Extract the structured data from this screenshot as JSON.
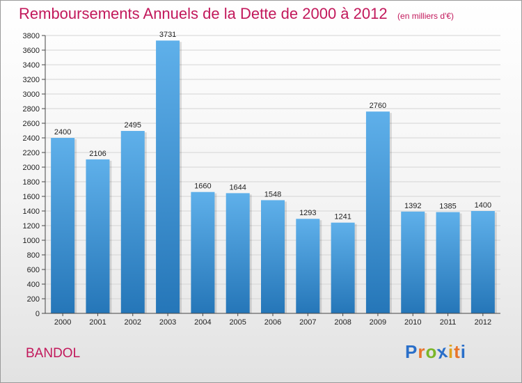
{
  "header": {
    "title": "Remboursements Annuels de la Dette de 2000 à 2012",
    "unit": "(en milliers d'€)"
  },
  "footer": {
    "city": "BANDOL",
    "logo_letters": [
      "P",
      "r",
      "o",
      "x",
      "i",
      "t",
      "i"
    ],
    "logo_colors": [
      "#2a6fc9",
      "#e8742a",
      "#7ab629",
      "#2a6fc9",
      "#e0a21e",
      "#e8742a",
      "#2a6fc9"
    ]
  },
  "colors": {
    "bar_top": "#5fb0ea",
    "bar_bottom": "#2576b8",
    "title": "#c2185b"
  },
  "chart_data": {
    "type": "bar",
    "title": "Remboursements Annuels de la Dette de 2000 à 2012",
    "xlabel": "",
    "ylabel": "",
    "categories": [
      "2000",
      "2001",
      "2002",
      "2003",
      "2004",
      "2005",
      "2006",
      "2007",
      "2008",
      "2009",
      "2010",
      "2011",
      "2012"
    ],
    "values": [
      2400,
      2106,
      2495,
      3731,
      1660,
      1644,
      1548,
      1293,
      1241,
      2760,
      1392,
      1385,
      1400
    ],
    "data_labels": [
      "2400",
      "2106",
      "2495",
      "3731",
      "1660",
      "1644",
      "1548",
      "1293",
      "1241",
      "2760",
      "1392",
      "1385",
      "1400"
    ],
    "ylim": [
      0,
      3800
    ],
    "yticks": [
      0,
      200,
      400,
      600,
      800,
      1000,
      1200,
      1400,
      1600,
      1800,
      2000,
      2200,
      2400,
      2600,
      2800,
      3000,
      3200,
      3400,
      3600,
      3800
    ],
    "grid": true,
    "legend": "none"
  }
}
